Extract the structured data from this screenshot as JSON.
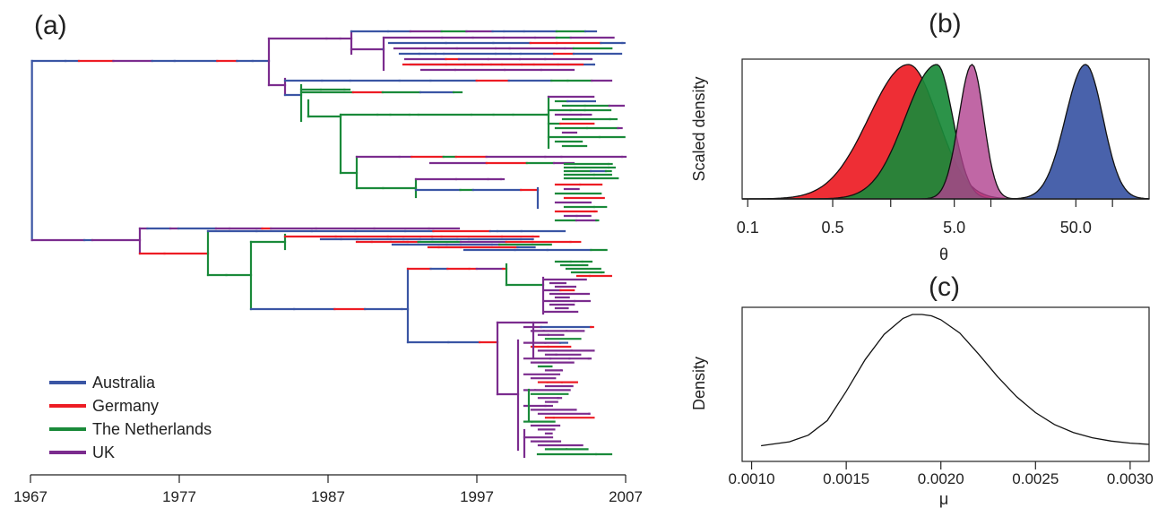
{
  "colors": {
    "Australia": "#3a55a4",
    "Germany": "#ed1c24",
    "The Netherlands": "#1a8a3a",
    "UK": "#7b2c8e",
    "axis": "#222222"
  },
  "chart_data": [
    {
      "panel": "(a)",
      "type": "tree",
      "x_axis": {
        "ticks": [
          "1967",
          "1977",
          "1987",
          "1997",
          "2007"
        ],
        "range": [
          1967,
          2007
        ]
      },
      "legend": {
        "placement": "bottom-left",
        "entries": [
          "Australia",
          "Germany",
          "The Netherlands",
          "UK"
        ]
      }
    },
    {
      "panel": "(b)",
      "type": "area",
      "xlabel": "θ",
      "ylabel": "Scaled density",
      "x_scale": "log",
      "x_ticks": [
        "0.1",
        "0.5",
        "5.0",
        "50.0"
      ],
      "xlim": [
        0.09,
        200
      ],
      "grid": false,
      "series": [
        {
          "color": "#ed1c24",
          "mode": 2.1,
          "sigma_left": 0.75,
          "sigma_right": 0.55
        },
        {
          "color": "#1a8a3a",
          "mode": 3.6,
          "sigma_left": 0.6,
          "sigma_right": 0.3
        },
        {
          "color": "#b0418f",
          "mode": 7.0,
          "sigma_left": 0.25,
          "sigma_right": 0.22
        },
        {
          "color": "#3a55a4",
          "mode": 60.0,
          "sigma_left": 0.38,
          "sigma_right": 0.33
        }
      ]
    },
    {
      "panel": "(c)",
      "type": "line",
      "xlabel": "μ",
      "ylabel": "Density",
      "x_ticks": [
        "0.0010",
        "0.0015",
        "0.0020",
        "0.0025",
        "0.0030"
      ],
      "xlim": [
        0.00095,
        0.0031
      ],
      "grid": false,
      "series": [
        {
          "x": [
            0.00105,
            0.0011,
            0.0012,
            0.0013,
            0.0014,
            0.0015,
            0.0016,
            0.0017,
            0.0018,
            0.00185,
            0.0019,
            0.00195,
            0.002,
            0.0021,
            0.0022,
            0.0023,
            0.0024,
            0.0025,
            0.0026,
            0.0027,
            0.0028,
            0.0029,
            0.003,
            0.0031
          ],
          "y": [
            0.01,
            0.02,
            0.04,
            0.09,
            0.2,
            0.42,
            0.66,
            0.85,
            0.97,
            1.0,
            1.0,
            0.99,
            0.96,
            0.86,
            0.7,
            0.53,
            0.38,
            0.26,
            0.17,
            0.11,
            0.07,
            0.045,
            0.03,
            0.02
          ]
        }
      ]
    }
  ],
  "labels": {
    "panel_a": "(a)",
    "panel_b": "(b)",
    "panel_c": "(c)"
  }
}
